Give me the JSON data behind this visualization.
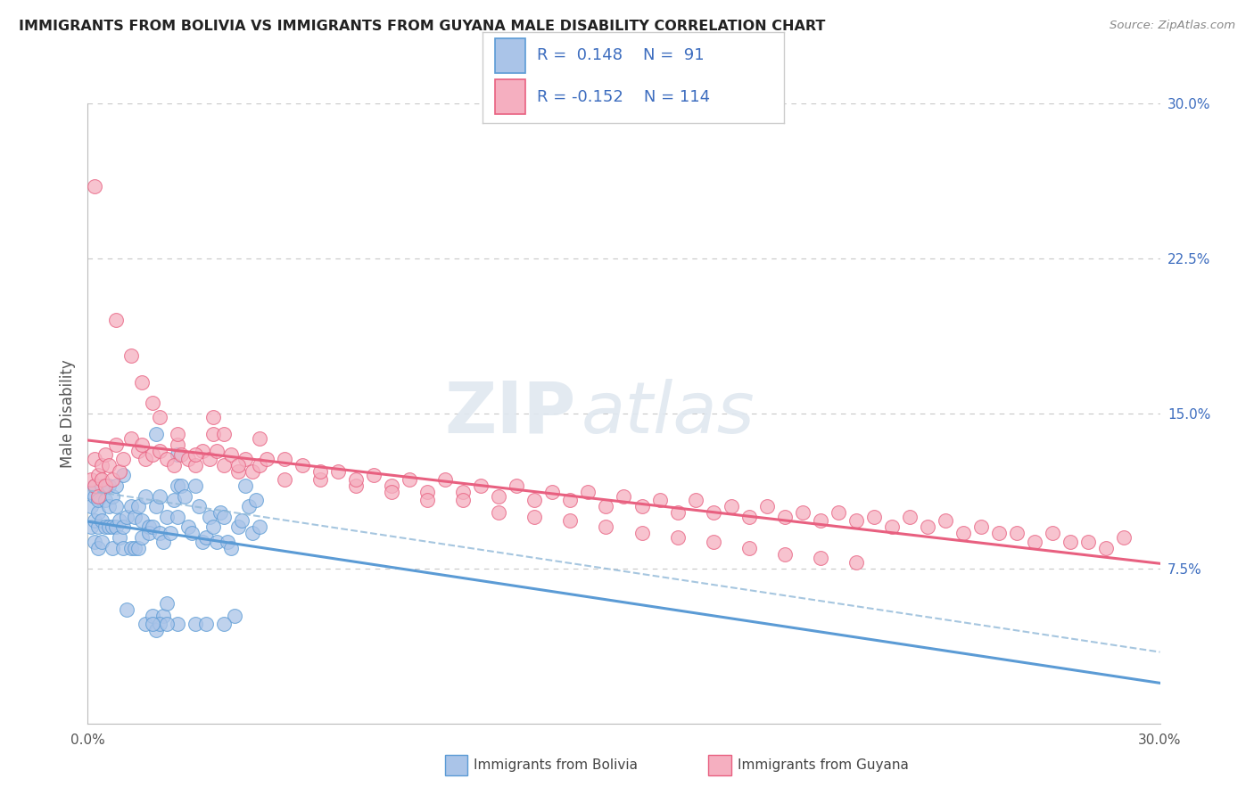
{
  "title": "IMMIGRANTS FROM BOLIVIA VS IMMIGRANTS FROM GUYANA MALE DISABILITY CORRELATION CHART",
  "source": "Source: ZipAtlas.com",
  "ylabel": "Male Disability",
  "x_range": [
    0.0,
    0.3
  ],
  "y_range": [
    0.0,
    0.3
  ],
  "bolivia_color": "#aac4e8",
  "guyana_color": "#f5afc0",
  "bolivia_line_color": "#5b9bd5",
  "guyana_line_color": "#e86080",
  "bolivia_R": 0.148,
  "bolivia_N": 91,
  "guyana_R": -0.152,
  "guyana_N": 114,
  "legend_label_bolivia": "Immigrants from Bolivia",
  "legend_label_guyana": "Immigrants from Guyana",
  "watermark_1": "ZIP",
  "watermark_2": "atlas",
  "background_color": "#ffffff",
  "grid_color": "#c8c8c8",
  "title_color": "#222222",
  "legend_text_color": "#3d6dbf",
  "right_tick_color": "#3d6dbf",
  "bolivia_scatter_x": [
    0.001,
    0.001,
    0.001,
    0.002,
    0.002,
    0.002,
    0.002,
    0.003,
    0.003,
    0.003,
    0.003,
    0.004,
    0.004,
    0.004,
    0.005,
    0.005,
    0.005,
    0.006,
    0.006,
    0.006,
    0.007,
    0.007,
    0.007,
    0.008,
    0.008,
    0.008,
    0.009,
    0.009,
    0.01,
    0.01,
    0.01,
    0.011,
    0.011,
    0.012,
    0.012,
    0.013,
    0.013,
    0.014,
    0.014,
    0.015,
    0.015,
    0.016,
    0.016,
    0.017,
    0.017,
    0.018,
    0.018,
    0.019,
    0.019,
    0.02,
    0.02,
    0.021,
    0.021,
    0.022,
    0.022,
    0.023,
    0.024,
    0.025,
    0.025,
    0.026,
    0.027,
    0.028,
    0.029,
    0.03,
    0.031,
    0.032,
    0.033,
    0.034,
    0.035,
    0.036,
    0.037,
    0.038,
    0.039,
    0.04,
    0.041,
    0.042,
    0.043,
    0.044,
    0.045,
    0.046,
    0.047,
    0.048,
    0.019,
    0.025,
    0.03,
    0.033,
    0.038,
    0.02,
    0.025,
    0.018,
    0.022
  ],
  "bolivia_scatter_y": [
    0.112,
    0.105,
    0.095,
    0.11,
    0.098,
    0.088,
    0.115,
    0.102,
    0.095,
    0.108,
    0.085,
    0.115,
    0.098,
    0.088,
    0.115,
    0.095,
    0.108,
    0.115,
    0.095,
    0.105,
    0.095,
    0.11,
    0.085,
    0.105,
    0.095,
    0.115,
    0.09,
    0.098,
    0.095,
    0.12,
    0.085,
    0.1,
    0.055,
    0.105,
    0.085,
    0.085,
    0.1,
    0.105,
    0.085,
    0.09,
    0.098,
    0.11,
    0.048,
    0.095,
    0.092,
    0.095,
    0.052,
    0.105,
    0.045,
    0.11,
    0.092,
    0.088,
    0.052,
    0.1,
    0.058,
    0.092,
    0.108,
    0.1,
    0.115,
    0.115,
    0.11,
    0.095,
    0.092,
    0.115,
    0.105,
    0.088,
    0.09,
    0.1,
    0.095,
    0.088,
    0.102,
    0.1,
    0.088,
    0.085,
    0.052,
    0.095,
    0.098,
    0.115,
    0.105,
    0.092,
    0.108,
    0.095,
    0.14,
    0.13,
    0.048,
    0.048,
    0.048,
    0.048,
    0.048,
    0.048,
    0.048
  ],
  "guyana_scatter_x": [
    0.001,
    0.002,
    0.002,
    0.003,
    0.003,
    0.004,
    0.004,
    0.005,
    0.005,
    0.006,
    0.007,
    0.008,
    0.009,
    0.01,
    0.012,
    0.014,
    0.015,
    0.016,
    0.018,
    0.02,
    0.022,
    0.024,
    0.025,
    0.026,
    0.028,
    0.03,
    0.032,
    0.034,
    0.035,
    0.036,
    0.038,
    0.04,
    0.042,
    0.044,
    0.046,
    0.048,
    0.05,
    0.055,
    0.06,
    0.065,
    0.07,
    0.075,
    0.08,
    0.085,
    0.09,
    0.095,
    0.1,
    0.105,
    0.11,
    0.115,
    0.12,
    0.125,
    0.13,
    0.135,
    0.14,
    0.145,
    0.15,
    0.155,
    0.16,
    0.165,
    0.17,
    0.175,
    0.18,
    0.185,
    0.19,
    0.195,
    0.2,
    0.205,
    0.21,
    0.215,
    0.22,
    0.225,
    0.23,
    0.235,
    0.24,
    0.245,
    0.25,
    0.255,
    0.26,
    0.265,
    0.27,
    0.275,
    0.28,
    0.285,
    0.29,
    0.002,
    0.008,
    0.012,
    0.015,
    0.018,
    0.02,
    0.025,
    0.03,
    0.035,
    0.038,
    0.042,
    0.048,
    0.055,
    0.065,
    0.075,
    0.085,
    0.095,
    0.105,
    0.115,
    0.125,
    0.135,
    0.145,
    0.155,
    0.165,
    0.175,
    0.185,
    0.195,
    0.205,
    0.215
  ],
  "guyana_scatter_y": [
    0.118,
    0.128,
    0.115,
    0.12,
    0.11,
    0.125,
    0.118,
    0.13,
    0.115,
    0.125,
    0.118,
    0.135,
    0.122,
    0.128,
    0.138,
    0.132,
    0.135,
    0.128,
    0.13,
    0.132,
    0.128,
    0.125,
    0.135,
    0.13,
    0.128,
    0.125,
    0.132,
    0.128,
    0.14,
    0.132,
    0.125,
    0.13,
    0.122,
    0.128,
    0.122,
    0.125,
    0.128,
    0.118,
    0.125,
    0.118,
    0.122,
    0.115,
    0.12,
    0.115,
    0.118,
    0.112,
    0.118,
    0.112,
    0.115,
    0.11,
    0.115,
    0.108,
    0.112,
    0.108,
    0.112,
    0.105,
    0.11,
    0.105,
    0.108,
    0.102,
    0.108,
    0.102,
    0.105,
    0.1,
    0.105,
    0.1,
    0.102,
    0.098,
    0.102,
    0.098,
    0.1,
    0.095,
    0.1,
    0.095,
    0.098,
    0.092,
    0.095,
    0.092,
    0.092,
    0.088,
    0.092,
    0.088,
    0.088,
    0.085,
    0.09,
    0.26,
    0.195,
    0.178,
    0.165,
    0.155,
    0.148,
    0.14,
    0.13,
    0.148,
    0.14,
    0.125,
    0.138,
    0.128,
    0.122,
    0.118,
    0.112,
    0.108,
    0.108,
    0.102,
    0.1,
    0.098,
    0.095,
    0.092,
    0.09,
    0.088,
    0.085,
    0.082,
    0.08,
    0.078
  ]
}
